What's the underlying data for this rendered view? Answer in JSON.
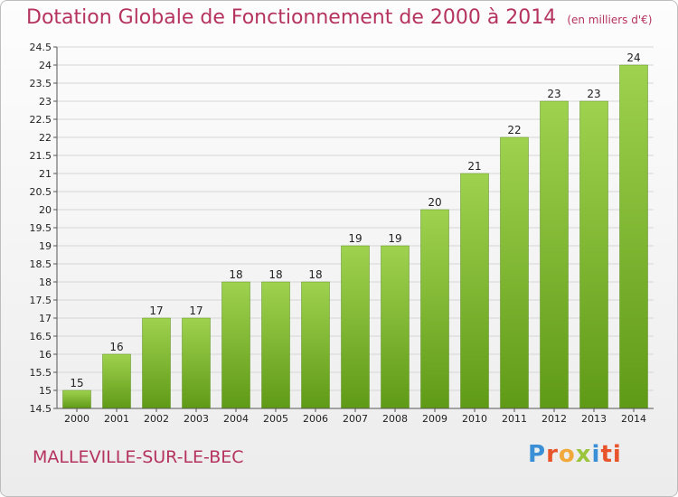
{
  "header": {
    "title": "Dotation Globale de Fonctionnement de 2000 à 2014",
    "unit": "(en milliers d'€)"
  },
  "footer": {
    "commune": "MALLEVILLE-SUR-LE-BEC",
    "logo": "Proxiti"
  },
  "colors": {
    "title": "#b5335f",
    "bar_light": "#9fd24e",
    "bar_dark": "#5f9a17"
  },
  "chart_data": {
    "type": "bar",
    "title": "Dotation Globale de Fonctionnement de 2000 à 2014",
    "xlabel": "",
    "ylabel": "",
    "categories": [
      "2000",
      "2001",
      "2002",
      "2003",
      "2004",
      "2005",
      "2006",
      "2007",
      "2008",
      "2009",
      "2010",
      "2011",
      "2012",
      "2013",
      "2014"
    ],
    "values": [
      15,
      16,
      17,
      17,
      18,
      18,
      18,
      19,
      19,
      20,
      21,
      22,
      23,
      23,
      24
    ],
    "data_labels": [
      "15",
      "16",
      "17",
      "17",
      "18",
      "18",
      "18",
      "19",
      "19",
      "20",
      "21",
      "22",
      "23",
      "23",
      "24"
    ],
    "ylim": [
      14.5,
      24.5
    ],
    "yticks": [
      14.5,
      15,
      15.5,
      16,
      16.5,
      17,
      17.5,
      18,
      18.5,
      19,
      19.5,
      20,
      20.5,
      21,
      21.5,
      22,
      22.5,
      23,
      23.5,
      24,
      24.5
    ],
    "ytick_labels": [
      "14.5",
      "15",
      "15.5",
      "16",
      "16.5",
      "17",
      "17.5",
      "18",
      "18.5",
      "19",
      "19.5",
      "20",
      "20.5",
      "21",
      "21.5",
      "22",
      "22.5",
      "23",
      "23.5",
      "24",
      "24.5"
    ],
    "grid": true
  }
}
